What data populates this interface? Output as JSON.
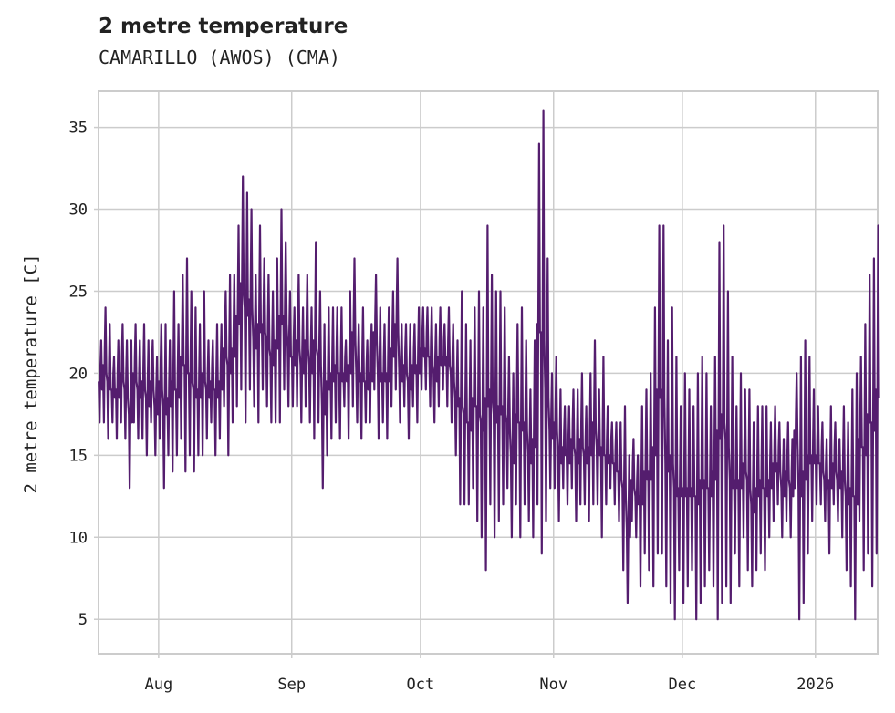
{
  "chart_data": {
    "type": "line",
    "title": "2 metre temperature",
    "subtitle": "CAMARILLO (AWOS) (CMA)",
    "xlabel": "",
    "ylabel": "2 metre temperature [C]",
    "ylim": [
      2.9,
      37.2
    ],
    "xlim": [
      "2025-07-18",
      "2026-01-15"
    ],
    "grid": true,
    "yticks": [
      5,
      10,
      15,
      20,
      25,
      30,
      35
    ],
    "xticks": [
      {
        "date": "2025-08-01",
        "label": "Aug"
      },
      {
        "date": "2025-09-01",
        "label": "Sep"
      },
      {
        "date": "2025-10-01",
        "label": "Oct"
      },
      {
        "date": "2025-11-01",
        "label": "Nov"
      },
      {
        "date": "2025-12-01",
        "label": "Dec"
      },
      {
        "date": "2026-01-01",
        "label": "2026"
      }
    ],
    "series": [
      {
        "name": "2 metre temperature",
        "color": "#541d6e",
        "start": "2025-07-18",
        "daily_min_max": [
          [
            17,
            22
          ],
          [
            17,
            24
          ],
          [
            16,
            23
          ],
          [
            17,
            21
          ],
          [
            16,
            22
          ],
          [
            17,
            23
          ],
          [
            16,
            22
          ],
          [
            13,
            22
          ],
          [
            17,
            23
          ],
          [
            16,
            22
          ],
          [
            16,
            23
          ],
          [
            15,
            22
          ],
          [
            17,
            22
          ],
          [
            15,
            21
          ],
          [
            16,
            23
          ],
          [
            13,
            23
          ],
          [
            15,
            22
          ],
          [
            14,
            25
          ],
          [
            15,
            23
          ],
          [
            16,
            26
          ],
          [
            14,
            27
          ],
          [
            15,
            25
          ],
          [
            14,
            24
          ],
          [
            15,
            23
          ],
          [
            15,
            25
          ],
          [
            16,
            22
          ],
          [
            17,
            22
          ],
          [
            15,
            23
          ],
          [
            16,
            23
          ],
          [
            18,
            25
          ],
          [
            15,
            26
          ],
          [
            17,
            26
          ],
          [
            18,
            29
          ],
          [
            19,
            32
          ],
          [
            17,
            31
          ],
          [
            19,
            30
          ],
          [
            18,
            26
          ],
          [
            17,
            29
          ],
          [
            19,
            27
          ],
          [
            18,
            26
          ],
          [
            17,
            25
          ],
          [
            17,
            27
          ],
          [
            17,
            30
          ],
          [
            19,
            28
          ],
          [
            18,
            25
          ],
          [
            18,
            24
          ],
          [
            18,
            26
          ],
          [
            17,
            24
          ],
          [
            18,
            26
          ],
          [
            17,
            24
          ],
          [
            16,
            28
          ],
          [
            17,
            25
          ],
          [
            13,
            23
          ],
          [
            15,
            24
          ],
          [
            16,
            24
          ],
          [
            17,
            24
          ],
          [
            16,
            24
          ],
          [
            18,
            22
          ],
          [
            16,
            25
          ],
          [
            18,
            27
          ],
          [
            17,
            23
          ],
          [
            16,
            24
          ],
          [
            17,
            22
          ],
          [
            17,
            23
          ],
          [
            19,
            26
          ],
          [
            16,
            24
          ],
          [
            17,
            23
          ],
          [
            16,
            24
          ],
          [
            18,
            25
          ],
          [
            19,
            27
          ],
          [
            17,
            23
          ],
          [
            18,
            23
          ],
          [
            16,
            23
          ],
          [
            18,
            23
          ],
          [
            17,
            24
          ],
          [
            19,
            24
          ],
          [
            19,
            24
          ],
          [
            18,
            24
          ],
          [
            17,
            23
          ],
          [
            18,
            24
          ],
          [
            19,
            23
          ],
          [
            18,
            24
          ],
          [
            17,
            23
          ],
          [
            15,
            22
          ],
          [
            12,
            25
          ],
          [
            12,
            23
          ],
          [
            12,
            22
          ],
          [
            13,
            24
          ],
          [
            11,
            25
          ],
          [
            10,
            24
          ],
          [
            8,
            29
          ],
          [
            12,
            26
          ],
          [
            10,
            25
          ],
          [
            11,
            25
          ],
          [
            12,
            24
          ],
          [
            13,
            21
          ],
          [
            10,
            20
          ],
          [
            12,
            23
          ],
          [
            10,
            24
          ],
          [
            12,
            22
          ],
          [
            11,
            19
          ],
          [
            10,
            22
          ],
          [
            12,
            34
          ],
          [
            9,
            36
          ],
          [
            11,
            27
          ],
          [
            13,
            20
          ],
          [
            13,
            21
          ],
          [
            11,
            19
          ],
          [
            13,
            18
          ],
          [
            12,
            18
          ],
          [
            13,
            19
          ],
          [
            11,
            19
          ],
          [
            12,
            20
          ],
          [
            12,
            18
          ],
          [
            11,
            20
          ],
          [
            12,
            22
          ],
          [
            12,
            19
          ],
          [
            10,
            21
          ],
          [
            12,
            18
          ],
          [
            13,
            17
          ],
          [
            12,
            17
          ],
          [
            11,
            17
          ],
          [
            8,
            18
          ],
          [
            6,
            15
          ],
          [
            11,
            16
          ],
          [
            10,
            15
          ],
          [
            7,
            18
          ],
          [
            9,
            19
          ],
          [
            8,
            20
          ],
          [
            7,
            24
          ],
          [
            9,
            29
          ],
          [
            9,
            29
          ],
          [
            7,
            22
          ],
          [
            6,
            24
          ],
          [
            5,
            21
          ],
          [
            8,
            18
          ],
          [
            6,
            20
          ],
          [
            7,
            19
          ],
          [
            8,
            18
          ],
          [
            5,
            20
          ],
          [
            6,
            21
          ],
          [
            7,
            20
          ],
          [
            8,
            18
          ],
          [
            7,
            21
          ],
          [
            5,
            28
          ],
          [
            6,
            29
          ],
          [
            7,
            25
          ],
          [
            6,
            21
          ],
          [
            9,
            18
          ],
          [
            7,
            20
          ],
          [
            10,
            19
          ],
          [
            8,
            19
          ],
          [
            7,
            17
          ],
          [
            8,
            18
          ],
          [
            9,
            18
          ],
          [
            8,
            18
          ],
          [
            10,
            17
          ],
          [
            11,
            18
          ],
          [
            12,
            17
          ],
          [
            10,
            16
          ],
          [
            11,
            17
          ],
          [
            10,
            16
          ],
          [
            13,
            20
          ],
          [
            5,
            21
          ],
          [
            6,
            22
          ],
          [
            9,
            21
          ],
          [
            11,
            19
          ],
          [
            12,
            18
          ],
          [
            12,
            17
          ],
          [
            11,
            16
          ],
          [
            9,
            18
          ],
          [
            12,
            17
          ],
          [
            11,
            16
          ],
          [
            10,
            18
          ],
          [
            8,
            17
          ],
          [
            7,
            19
          ],
          [
            5,
            20
          ],
          [
            11,
            21
          ],
          [
            8,
            23
          ],
          [
            9,
            26
          ],
          [
            7,
            27
          ],
          [
            9,
            29
          ]
        ]
      }
    ]
  }
}
